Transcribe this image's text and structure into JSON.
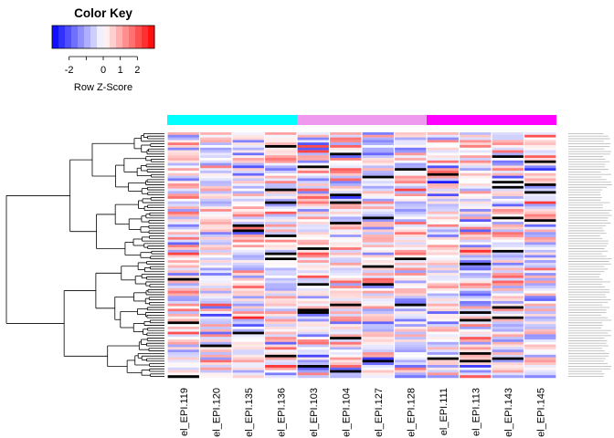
{
  "chart_data": {
    "type": "heatmap",
    "title": "",
    "color_key": {
      "title": "Color Key",
      "xlabel": "Row Z-Score",
      "ticks": [
        -2,
        0,
        1,
        2
      ],
      "tick_labels": [
        "-2",
        "0",
        "1",
        "2"
      ],
      "range": [
        -3,
        3
      ],
      "bins": 16,
      "colors": {
        "low": "#0000ff",
        "mid": "#ffffff",
        "high": "#ff0000"
      }
    },
    "column_labels": [
      "el_EPI.119",
      "el_EPI.120",
      "el_EPI.135",
      "el_EPI.136",
      "el_EPI.103",
      "el_EPI.104",
      "el_EPI.127",
      "el_EPI.128",
      "el_EPI.111",
      "el_EPI.113",
      "el_EPI.143",
      "el_EPI.145"
    ],
    "column_groups": [
      {
        "color": "#00ffff",
        "columns": 4
      },
      {
        "color": "#ee99ee",
        "columns": 4
      },
      {
        "color": "#ff00ff",
        "columns": 4
      }
    ],
    "row_count": 96,
    "missing_color": "#000000",
    "row_dendrogram": true,
    "row_labels_legible": false,
    "grid": false
  }
}
